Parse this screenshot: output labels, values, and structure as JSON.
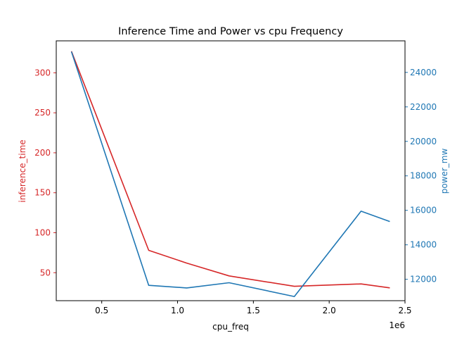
{
  "chart_data": {
    "type": "line",
    "title": "Inference Time and Power vs cpu Frequency",
    "xlabel": "cpu_freq",
    "x_offset_label": "1e6",
    "xlim": [
      0.2,
      2.5
    ],
    "xticks": [
      "0.5",
      "1.0",
      "1.5",
      "2.0",
      "2.5"
    ],
    "x": [
      0.3,
      0.81,
      1.06,
      1.34,
      1.77,
      2.21,
      2.4
    ],
    "colors": {
      "left": "#d62728",
      "right": "#1f77b4"
    },
    "series": [
      {
        "axis": "left",
        "ylabel": "inference_time",
        "ylim": [
          15,
          340
        ],
        "yticks": [
          50,
          100,
          150,
          200,
          250,
          300
        ],
        "values": [
          327,
          78,
          62,
          46,
          33,
          36,
          31
        ]
      },
      {
        "axis": "right",
        "ylabel": "power_mw",
        "ylim": [
          10760,
          25830
        ],
        "yticks": [
          12000,
          14000,
          16000,
          18000,
          20000,
          22000,
          24000
        ],
        "values": [
          25200,
          11650,
          11500,
          11800,
          11000,
          15950,
          15350
        ]
      }
    ]
  }
}
